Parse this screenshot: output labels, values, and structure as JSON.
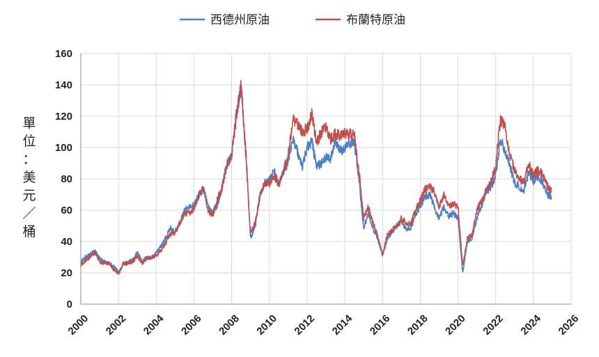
{
  "chart_data": {
    "type": "line",
    "title": "",
    "xlabel": "",
    "ylabel": "單位：美元／桶",
    "xlim": [
      2000,
      2026
    ],
    "ylim": [
      0,
      160
    ],
    "x_ticks": [
      2000,
      2002,
      2004,
      2006,
      2008,
      2010,
      2012,
      2014,
      2016,
      2018,
      2020,
      2022,
      2024,
      2026
    ],
    "y_ticks": [
      0,
      20,
      40,
      60,
      80,
      100,
      120,
      140,
      160
    ],
    "grid": true,
    "legend_position": "top-center",
    "series": [
      {
        "name": "西德州原油",
        "color": "#4f7fc1",
        "x": [
          2000.0,
          2000.25,
          2000.5,
          2000.75,
          2001.0,
          2001.25,
          2001.5,
          2001.75,
          2002.0,
          2002.25,
          2002.5,
          2002.75,
          2003.0,
          2003.25,
          2003.5,
          2003.75,
          2004.0,
          2004.25,
          2004.5,
          2004.75,
          2005.0,
          2005.25,
          2005.5,
          2005.75,
          2006.0,
          2006.25,
          2006.5,
          2006.75,
          2007.0,
          2007.25,
          2007.5,
          2007.75,
          2008.0,
          2008.25,
          2008.5,
          2008.75,
          2009.0,
          2009.25,
          2009.5,
          2009.75,
          2010.0,
          2010.25,
          2010.5,
          2010.75,
          2011.0,
          2011.25,
          2011.5,
          2011.75,
          2012.0,
          2012.25,
          2012.5,
          2012.75,
          2013.0,
          2013.25,
          2013.5,
          2013.75,
          2014.0,
          2014.25,
          2014.5,
          2014.75,
          2015.0,
          2015.25,
          2015.5,
          2015.75,
          2016.0,
          2016.25,
          2016.5,
          2016.75,
          2017.0,
          2017.25,
          2017.5,
          2017.75,
          2018.0,
          2018.25,
          2018.5,
          2018.75,
          2019.0,
          2019.25,
          2019.5,
          2019.75,
          2020.0,
          2020.25,
          2020.5,
          2020.75,
          2021.0,
          2021.25,
          2021.5,
          2021.75,
          2022.0,
          2022.25,
          2022.5,
          2022.75,
          2023.0,
          2023.25,
          2023.5,
          2023.75,
          2024.0,
          2024.25,
          2024.5,
          2024.75,
          2024.95
        ],
        "values": [
          27,
          30,
          32,
          34,
          29,
          27,
          26,
          24,
          20,
          26,
          27,
          28,
          33,
          27,
          30,
          29,
          33,
          37,
          42,
          49,
          46,
          52,
          60,
          62,
          63,
          70,
          73,
          62,
          58,
          64,
          75,
          90,
          95,
          122,
          138,
          98,
          42,
          50,
          70,
          77,
          79,
          85,
          76,
          85,
          90,
          105,
          97,
          88,
          100,
          104,
          88,
          90,
          94,
          93,
          104,
          98,
          100,
          103,
          104,
          80,
          48,
          58,
          48,
          42,
          30,
          42,
          46,
          50,
          53,
          48,
          49,
          57,
          63,
          68,
          70,
          62,
          55,
          62,
          56,
          58,
          55,
          20,
          40,
          42,
          55,
          63,
          72,
          75,
          82,
          105,
          98,
          88,
          78,
          75,
          72,
          85,
          78,
          82,
          78,
          70,
          69
        ]
      },
      {
        "name": "布蘭特原油",
        "color": "#c0504d",
        "x": [
          2000.0,
          2000.25,
          2000.5,
          2000.75,
          2001.0,
          2001.25,
          2001.5,
          2001.75,
          2002.0,
          2002.25,
          2002.5,
          2002.75,
          2003.0,
          2003.25,
          2003.5,
          2003.75,
          2004.0,
          2004.25,
          2004.5,
          2004.75,
          2005.0,
          2005.25,
          2005.5,
          2005.75,
          2006.0,
          2006.25,
          2006.5,
          2006.75,
          2007.0,
          2007.25,
          2007.5,
          2007.75,
          2008.0,
          2008.25,
          2008.5,
          2008.75,
          2009.0,
          2009.25,
          2009.5,
          2009.75,
          2010.0,
          2010.25,
          2010.5,
          2010.75,
          2011.0,
          2011.25,
          2011.5,
          2011.75,
          2012.0,
          2012.25,
          2012.5,
          2012.75,
          2013.0,
          2013.25,
          2013.5,
          2013.75,
          2014.0,
          2014.25,
          2014.5,
          2014.75,
          2015.0,
          2015.25,
          2015.5,
          2015.75,
          2016.0,
          2016.25,
          2016.5,
          2016.75,
          2017.0,
          2017.25,
          2017.5,
          2017.75,
          2018.0,
          2018.25,
          2018.5,
          2018.75,
          2019.0,
          2019.25,
          2019.5,
          2019.75,
          2020.0,
          2020.25,
          2020.5,
          2020.75,
          2021.0,
          2021.25,
          2021.5,
          2021.75,
          2022.0,
          2022.25,
          2022.5,
          2022.75,
          2023.0,
          2023.25,
          2023.5,
          2023.75,
          2024.0,
          2024.25,
          2024.5,
          2024.75,
          2024.95
        ],
        "values": [
          25,
          28,
          30,
          33,
          27,
          26,
          26,
          22,
          19,
          26,
          26,
          27,
          31,
          26,
          29,
          30,
          31,
          34,
          39,
          45,
          45,
          52,
          58,
          58,
          61,
          69,
          75,
          60,
          57,
          67,
          75,
          88,
          96,
          120,
          140,
          95,
          45,
          52,
          69,
          77,
          77,
          82,
          76,
          86,
          95,
          118,
          115,
          110,
          112,
          122,
          102,
          110,
          112,
          105,
          109,
          108,
          109,
          109,
          108,
          85,
          55,
          62,
          52,
          43,
          32,
          44,
          47,
          50,
          55,
          52,
          51,
          60,
          66,
          73,
          75,
          72,
          62,
          70,
          62,
          64,
          62,
          24,
          42,
          44,
          60,
          66,
          73,
          78,
          88,
          118,
          112,
          95,
          85,
          80,
          78,
          90,
          82,
          86,
          82,
          75,
          73
        ]
      }
    ]
  }
}
